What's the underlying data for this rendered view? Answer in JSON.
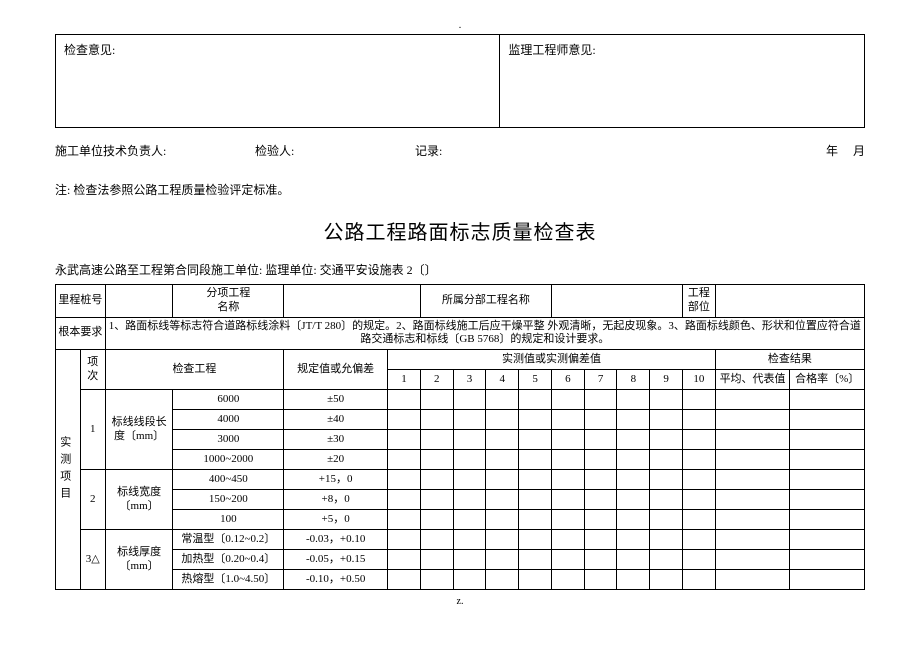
{
  "top_mark": ".",
  "opinion": {
    "left_label": "检查意见:",
    "right_label": "监理工程师意见:"
  },
  "sigline": {
    "a": "施工单位技术负责人:",
    "b": "检验人:",
    "c": "记录:",
    "d": "年     月"
  },
  "note": "注: 检查法参照公路工程质量检验评定标准。",
  "title": "公路工程路面标志质量检查表",
  "subtitle": "永武高速公路至工程第合同段施工单位: 监理单位: 交通平安设施表 2〔〕",
  "hdr": {
    "pile_label": "里程桩号",
    "sub_name_label": "分项工程\n名称",
    "part_name_label": "所属分部工程名称",
    "loc_label": "工程部位",
    "req_label": "根本要求",
    "req_text": "1、路面标线等标志符合道路标线涂料〔JT/T 280〕的规定。2、路面标线施工后应干燥平整 外观清晰，无起皮现象。3、路面标线颜色、形状和位置应符合道路交通标志和标线〔GB 5768〕的规定和设计要求。",
    "side": "实测项目",
    "idx": "项\n次",
    "check_item": "检查工程",
    "tol": "规定值或允偏差",
    "measured_group": "实测值或实测偏差值",
    "result_group": "检查结果",
    "avg": "平均、代表值",
    "rate": "合格率〔%〕",
    "cols": [
      "1",
      "2",
      "3",
      "4",
      "5",
      "6",
      "7",
      "8",
      "9",
      "10"
    ]
  },
  "groups": [
    {
      "idx": "1",
      "name": "标线线段长\n度〔mm〕",
      "rows": [
        {
          "spec": "6000",
          "tol": "±50"
        },
        {
          "spec": "4000",
          "tol": "±40"
        },
        {
          "spec": "3000",
          "tol": "±30"
        },
        {
          "spec": "1000~2000",
          "tol": "±20"
        }
      ]
    },
    {
      "idx": "2",
      "name": "标线宽度\n〔mm〕",
      "rows": [
        {
          "spec": "400~450",
          "tol": "+15，0"
        },
        {
          "spec": "150~200",
          "tol": "+8，0"
        },
        {
          "spec": "100",
          "tol": "+5，0"
        }
      ]
    },
    {
      "idx": "3△",
      "name": "标线厚度\n〔mm〕",
      "rows": [
        {
          "spec": "常温型〔0.12~0.2〕",
          "tol": "-0.03，+0.10"
        },
        {
          "spec": "加热型〔0.20~0.4〕",
          "tol": "-0.05，+0.15"
        },
        {
          "spec": "热熔型〔1.0~4.50〕",
          "tol": "-0.10，+0.50"
        }
      ]
    }
  ],
  "foot": "z."
}
